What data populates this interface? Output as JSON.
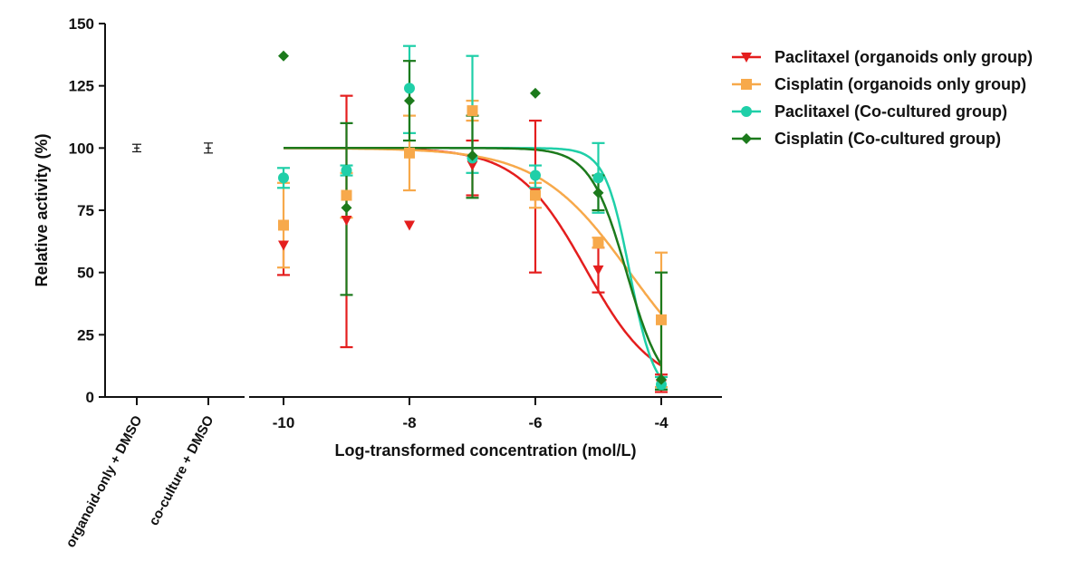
{
  "chart_data": {
    "type": "scatter",
    "title": "",
    "xlabel": "Log-transformed concentration (mol/L)",
    "ylabel": "Relative activity (%)",
    "xlim": [
      -10.75,
      -3
    ],
    "ylim": [
      0,
      150
    ],
    "yticks": [
      "0",
      "25",
      "50",
      "75",
      "100",
      "125",
      "150"
    ],
    "xticks": [
      "-10",
      "-8",
      "-6",
      "-4"
    ],
    "legend_position": "right",
    "grid": false,
    "controls": [
      {
        "label": "organoid-only + DMSO",
        "value": 100,
        "error": 1.5
      },
      {
        "label": "co-culture + DMSO",
        "value": 100,
        "error": 2
      }
    ],
    "series": [
      {
        "name": "Paclitaxel (organoids only group)",
        "color": "#e41e1e",
        "marker": "triangle-down",
        "x": [
          -10,
          -9,
          -8,
          -7,
          -6,
          -5,
          -4
        ],
        "y": [
          61,
          71,
          69,
          93,
          82,
          51,
          5
        ],
        "err_low": [
          49,
          20,
          null,
          81,
          50,
          42,
          2
        ],
        "err_high": [
          null,
          121,
          null,
          103,
          111,
          60,
          9
        ],
        "fit": {
          "top": 100,
          "bottom": 3,
          "logEC50": -5.2,
          "hill": 0.8
        }
      },
      {
        "name": "Cisplatin (organoids only group)",
        "color": "#f7a94b",
        "marker": "square",
        "x": [
          -10,
          -9,
          -8,
          -7,
          -6,
          -5,
          -4
        ],
        "y": [
          69,
          81,
          98,
          115,
          81,
          62,
          31
        ],
        "err_low": [
          52,
          72,
          83,
          111,
          76,
          60,
          4
        ],
        "err_high": [
          86,
          90,
          113,
          119,
          86,
          64,
          58
        ],
        "fit": {
          "top": 100,
          "bottom": 0,
          "logEC50": -4.5,
          "hill": 0.6
        }
      },
      {
        "name": "Paclitaxel (Co-cultured group)",
        "color": "#1fcfa8",
        "marker": "circle",
        "x": [
          -10,
          -9,
          -8,
          -7,
          -6,
          -5,
          -4
        ],
        "y": [
          88,
          91,
          124,
          96,
          89,
          88,
          5
        ],
        "err_low": [
          84,
          89,
          106,
          90,
          84,
          74,
          3
        ],
        "err_high": [
          92,
          93,
          141,
          137,
          93,
          102,
          8
        ],
        "fit": {
          "top": 100,
          "bottom": 0,
          "logEC50": -4.5,
          "hill": 2.2
        }
      },
      {
        "name": "Cisplatin (Co-cultured group)",
        "color": "#1c7a1c",
        "marker": "diamond",
        "x": [
          -10,
          -9,
          -8,
          -7,
          -6,
          -5,
          -4
        ],
        "y": [
          137,
          76,
          119,
          97,
          122,
          82,
          7
        ],
        "err_low": [
          null,
          41,
          103,
          80,
          null,
          75,
          3
        ],
        "err_high": [
          null,
          110,
          135,
          113,
          null,
          89,
          50
        ],
        "fit": {
          "top": 100,
          "bottom": 0,
          "logEC50": -4.55,
          "hill": 1.5
        }
      }
    ]
  }
}
